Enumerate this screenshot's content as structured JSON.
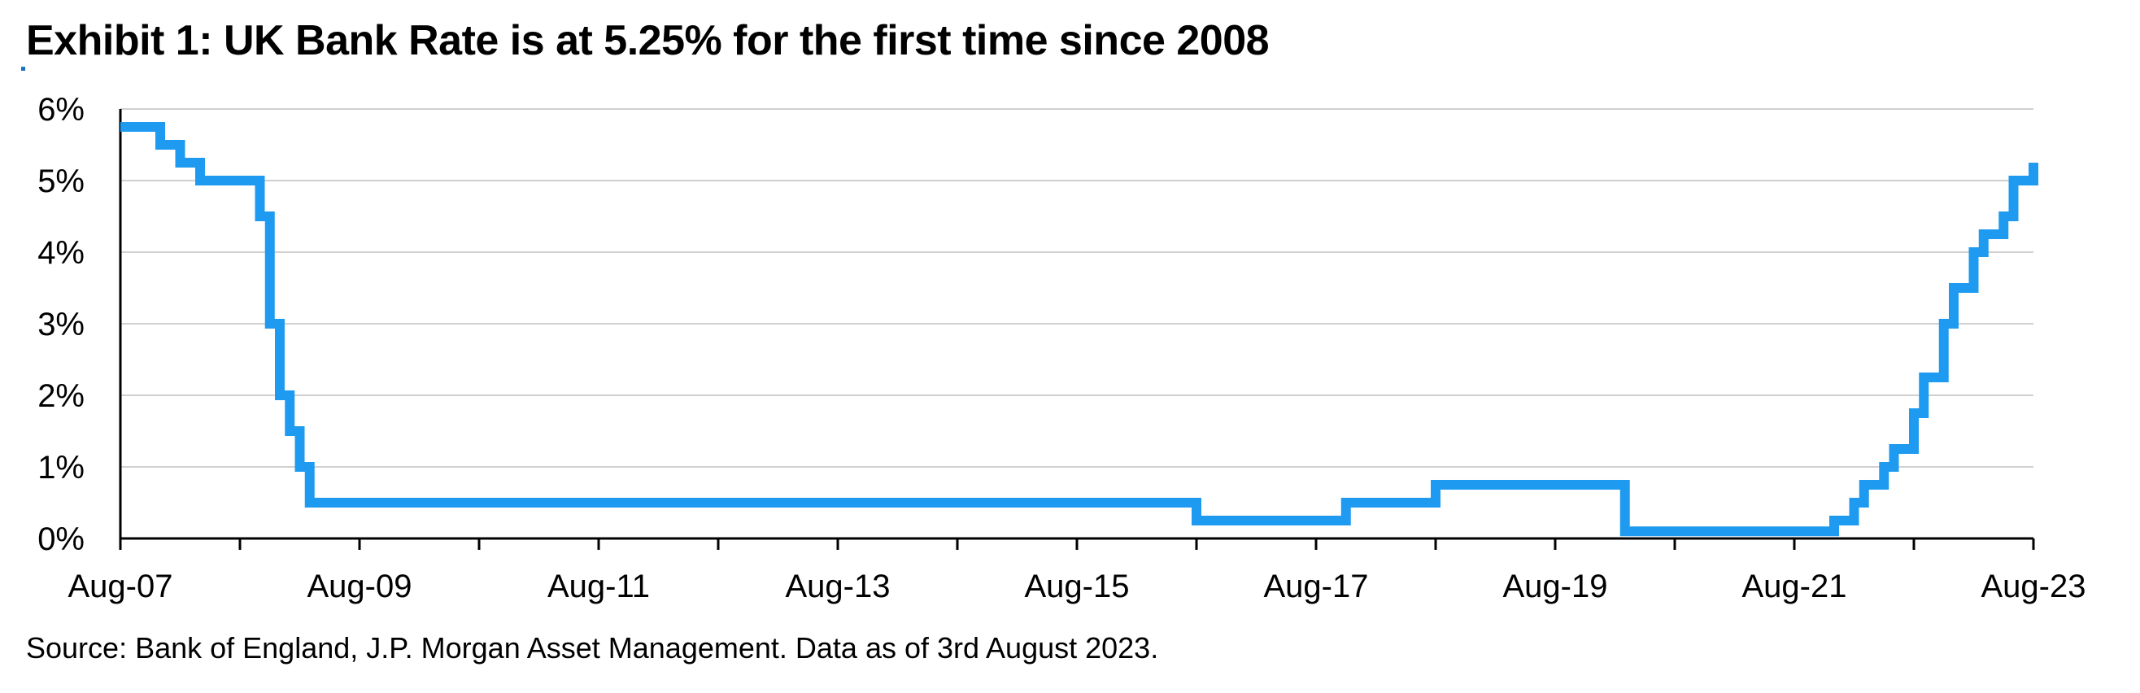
{
  "title": "Exhibit 1: UK Bank Rate is at 5.25% for the first time since 2008",
  "source": "Source: Bank of England, J.P. Morgan Asset Management. Data as of 3rd August 2023.",
  "colors": {
    "line": "#1e9bf0",
    "grid": "#d0d0d0",
    "axis": "#000000"
  },
  "chart_data": {
    "type": "line",
    "step": true,
    "title": "Exhibit 1: UK Bank Rate is at 5.25% for the first time since 2008",
    "xlabel": "",
    "ylabel": "",
    "x_range": [
      "2007-08",
      "2023-08"
    ],
    "ylim": [
      0,
      6
    ],
    "y_ticks": [
      0,
      1,
      2,
      3,
      4,
      5,
      6
    ],
    "y_tick_labels": [
      "0%",
      "1%",
      "2%",
      "3%",
      "4%",
      "5%",
      "6%"
    ],
    "x_tick_labels": [
      "Aug-07",
      "Aug-09",
      "Aug-11",
      "Aug-13",
      "Aug-15",
      "Aug-17",
      "Aug-19",
      "Aug-21",
      "Aug-23"
    ],
    "x_tick_dates": [
      "2007-08",
      "2009-08",
      "2011-08",
      "2013-08",
      "2015-08",
      "2017-08",
      "2019-08",
      "2021-08",
      "2023-08"
    ],
    "grid": "horizontal",
    "legend": "none",
    "series": [
      {
        "points": [
          [
            "2007-08",
            5.75
          ],
          [
            "2007-12",
            5.5
          ],
          [
            "2008-02",
            5.25
          ],
          [
            "2008-04",
            5.0
          ],
          [
            "2008-10",
            4.5
          ],
          [
            "2008-11",
            3.0
          ],
          [
            "2008-12",
            2.0
          ],
          [
            "2009-01",
            1.5
          ],
          [
            "2009-02",
            1.0
          ],
          [
            "2009-03",
            0.5
          ],
          [
            "2016-08",
            0.25
          ],
          [
            "2017-11",
            0.5
          ],
          [
            "2018-08",
            0.75
          ],
          [
            "2020-03",
            0.1
          ],
          [
            "2021-12",
            0.25
          ],
          [
            "2022-02",
            0.5
          ],
          [
            "2022-03",
            0.75
          ],
          [
            "2022-05",
            1.0
          ],
          [
            "2022-06",
            1.25
          ],
          [
            "2022-08",
            1.75
          ],
          [
            "2022-09",
            2.25
          ],
          [
            "2022-11",
            3.0
          ],
          [
            "2022-12",
            3.5
          ],
          [
            "2023-02",
            4.0
          ],
          [
            "2023-03",
            4.25
          ],
          [
            "2023-05",
            4.5
          ],
          [
            "2023-06",
            5.0
          ],
          [
            "2023-08",
            5.25
          ]
        ]
      }
    ]
  }
}
